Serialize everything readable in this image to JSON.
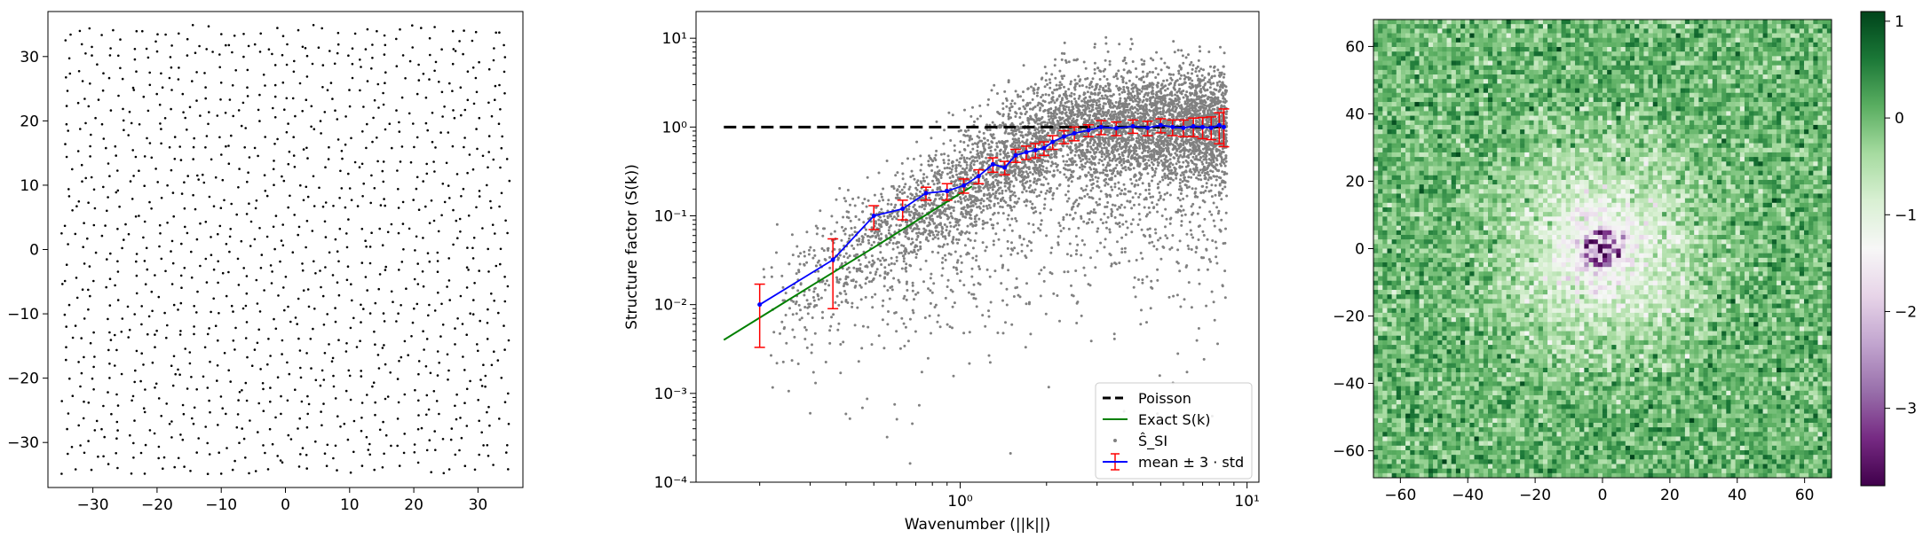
{
  "chart_data": [
    {
      "type": "scatter",
      "name": "point-pattern",
      "xlim": [
        -37,
        37
      ],
      "ylim": [
        -37,
        37
      ],
      "x_ticks": [
        -30,
        -20,
        -10,
        0,
        10,
        20,
        30
      ],
      "y_ticks": [
        -30,
        -20,
        -10,
        0,
        10,
        20,
        30
      ],
      "x_tick_labels": [
        "−30",
        "−20",
        "−10",
        "0",
        "10",
        "20",
        "30"
      ],
      "y_tick_labels": [
        "−30",
        "−20",
        "−10",
        "0",
        "10",
        "20",
        "30"
      ],
      "domain": [
        -35,
        35
      ],
      "points_count": 1200,
      "color": "#000000"
    },
    {
      "type": "scatter",
      "name": "structure-factor",
      "xscale": "log",
      "yscale": "log",
      "xlabel": "Wavenumber (||k||)",
      "ylabel": "Structure factor (S(k))",
      "xlim": [
        0.12,
        11
      ],
      "ylim": [
        0.0001,
        20
      ],
      "x_tick_labels": [
        "10⁰",
        "10¹"
      ],
      "x_ticks": [
        1,
        10
      ],
      "y_ticks": [
        0.0001,
        0.001,
        0.01,
        0.1,
        1,
        10
      ],
      "y_tick_labels": [
        "10⁻⁴",
        "10⁻³",
        "10⁻²",
        "10⁻¹",
        "10⁰",
        "10¹"
      ],
      "legend": {
        "placement": "lower-right",
        "entries": [
          {
            "label": "Poisson",
            "style": "dashed",
            "color": "#000000"
          },
          {
            "label": "Exact S(k)",
            "style": "line",
            "color": "#008000"
          },
          {
            "label": "Ŝ_SI",
            "style": "marker",
            "color": "#808080"
          },
          {
            "label": "mean ± 3 · std",
            "style": "errorbar",
            "color": "#0000ff",
            "err_color": "#ff0000"
          }
        ]
      },
      "poisson": {
        "x": [
          0.15,
          8.5
        ],
        "y": [
          1,
          1
        ]
      },
      "exact": {
        "x": [
          0.15,
          0.3,
          0.5,
          0.7,
          0.9,
          1.1
        ],
        "y": [
          0.004,
          0.016,
          0.044,
          0.087,
          0.144,
          0.215
        ]
      },
      "mean_series": {
        "k": [
          0.2,
          0.36,
          0.5,
          0.63,
          0.76,
          0.9,
          1.03,
          1.16,
          1.3,
          1.43,
          1.56,
          1.7,
          1.83,
          1.96,
          2.1,
          2.3,
          2.5,
          2.8,
          3.1,
          3.5,
          4.0,
          4.5,
          5.0,
          5.5,
          6.0,
          6.5,
          7.0,
          7.5,
          8.0,
          8.3
        ],
        "mean": [
          0.01,
          0.032,
          0.1,
          0.12,
          0.18,
          0.19,
          0.22,
          0.28,
          0.38,
          0.35,
          0.48,
          0.52,
          0.55,
          0.58,
          0.68,
          0.78,
          0.85,
          0.92,
          1.0,
          0.97,
          1.02,
          0.98,
          1.05,
          1.0,
          0.98,
          1.02,
          1.0,
          0.98,
          1.05,
          1.0
        ],
        "lower": [
          0.0033,
          0.009,
          0.07,
          0.09,
          0.15,
          0.15,
          0.18,
          0.23,
          0.31,
          0.29,
          0.4,
          0.43,
          0.45,
          0.48,
          0.56,
          0.65,
          0.7,
          0.78,
          0.82,
          0.8,
          0.85,
          0.8,
          0.86,
          0.8,
          0.78,
          0.78,
          0.74,
          0.72,
          0.65,
          0.6
        ],
        "upper": [
          0.017,
          0.055,
          0.13,
          0.15,
          0.21,
          0.23,
          0.26,
          0.33,
          0.45,
          0.41,
          0.56,
          0.61,
          0.65,
          0.68,
          0.8,
          0.91,
          1.0,
          1.06,
          1.18,
          1.14,
          1.2,
          1.16,
          1.24,
          1.2,
          1.2,
          1.26,
          1.28,
          1.3,
          1.45,
          1.6
        ]
      },
      "scatter_color": "#808080",
      "scatter_count": 6000
    },
    {
      "type": "heatmap",
      "name": "log-structure-factor-map",
      "xlim": [
        -68,
        68
      ],
      "ylim": [
        -68,
        68
      ],
      "x_ticks": [
        -60,
        -40,
        -20,
        0,
        20,
        40,
        60
      ],
      "y_ticks": [
        -60,
        -40,
        -20,
        0,
        20,
        40,
        60
      ],
      "x_tick_labels": [
        "−60",
        "−40",
        "−20",
        "0",
        "20",
        "40",
        "60"
      ],
      "y_tick_labels": [
        "−60",
        "−40",
        "−20",
        "0",
        "20",
        "40",
        "60"
      ],
      "grid_cells": 100,
      "colorbar": {
        "range": [
          -3.8,
          1.1
        ],
        "ticks": [
          1,
          0,
          -1,
          -2,
          -3
        ],
        "tick_labels": [
          "1",
          "0",
          "−1",
          "−2",
          "−3"
        ],
        "colormap": "PRGn",
        "colors": [
          "#40004b",
          "#762a83",
          "#9970ab",
          "#c2a5cf",
          "#e7d4e8",
          "#f7f7f7",
          "#d9f0d3",
          "#a6dba0",
          "#5aae61",
          "#1b7837",
          "#00441b"
        ]
      }
    }
  ]
}
